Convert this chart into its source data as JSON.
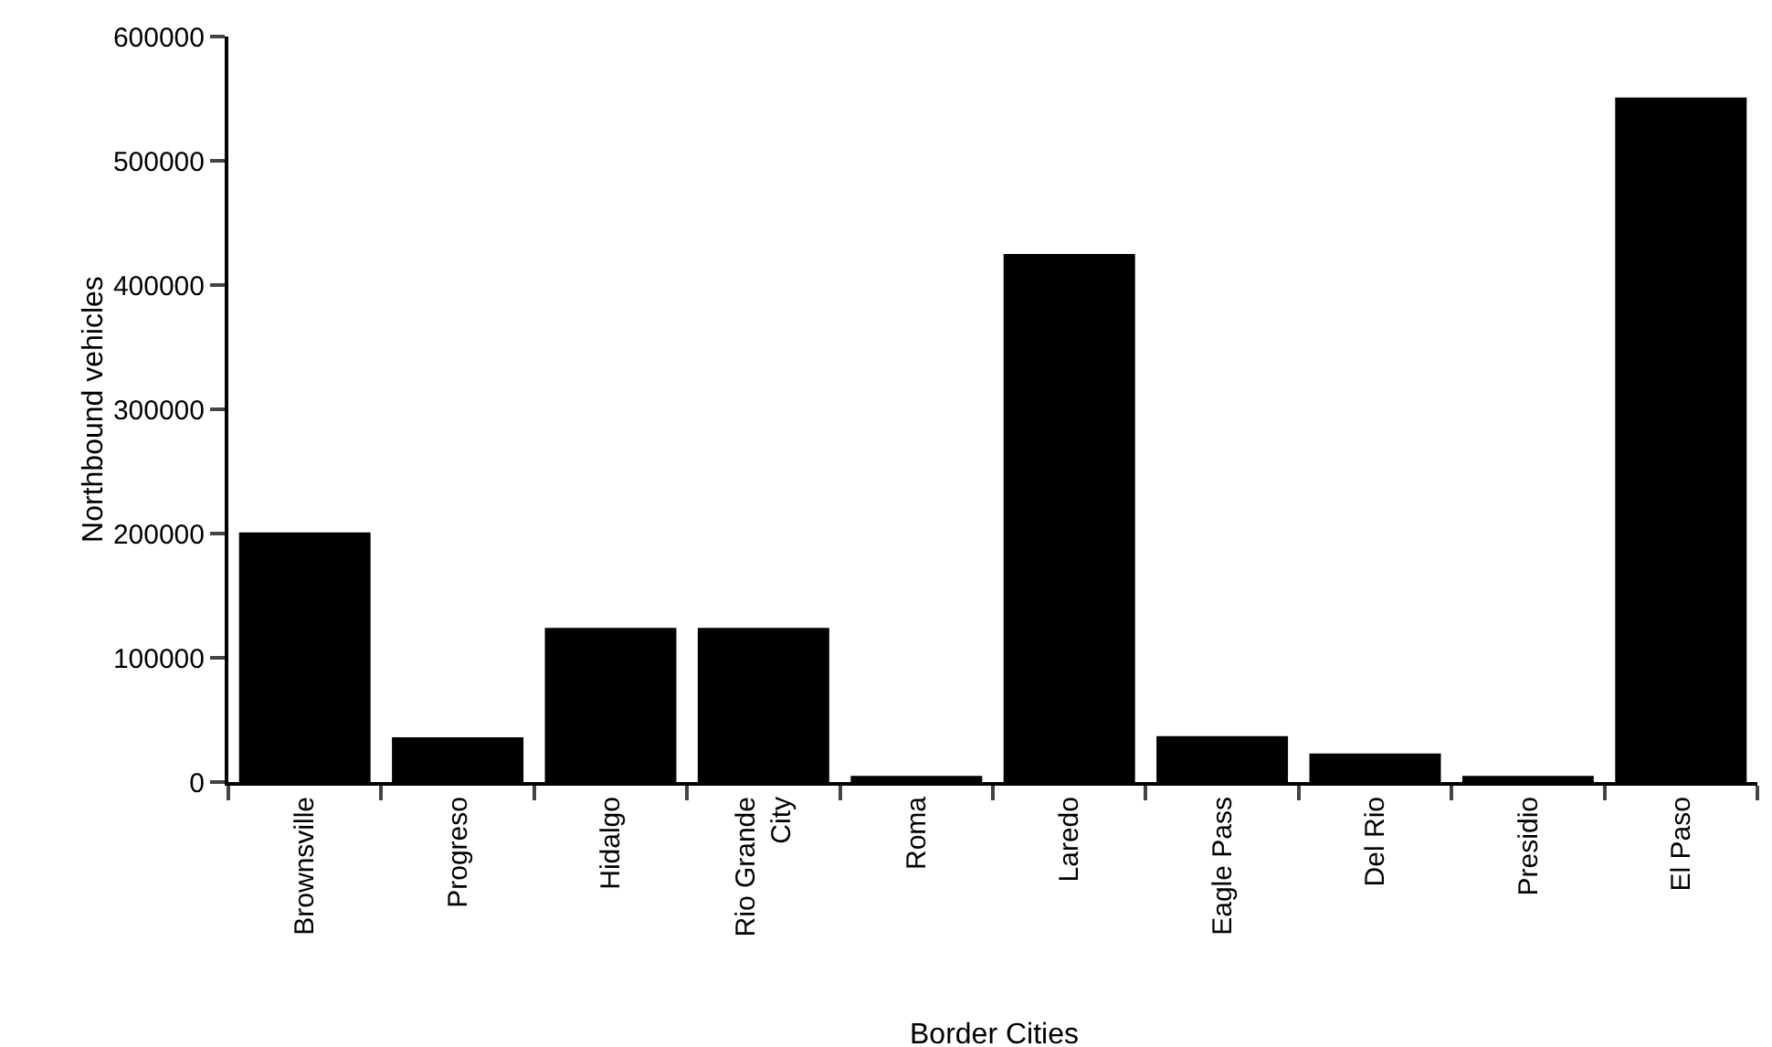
{
  "chart_data": {
    "type": "bar",
    "xlabel": "Border Cities",
    "ylabel": "Northbound vehicles",
    "categories": [
      "Brownsville",
      "Progreso",
      "Hidalgo",
      "Rio Grande City",
      "Roma",
      "Laredo",
      "Eagle Pass",
      "Del Rio",
      "Presidio",
      "El Paso"
    ],
    "values": [
      201000,
      36000,
      124000,
      124000,
      5000,
      425000,
      37000,
      23000,
      5000,
      551000
    ],
    "color": "#000000",
    "ylim": [
      0,
      600000
    ],
    "yticks": [
      0,
      100000,
      200000,
      300000,
      400000,
      500000,
      600000
    ],
    "grid": false
  }
}
